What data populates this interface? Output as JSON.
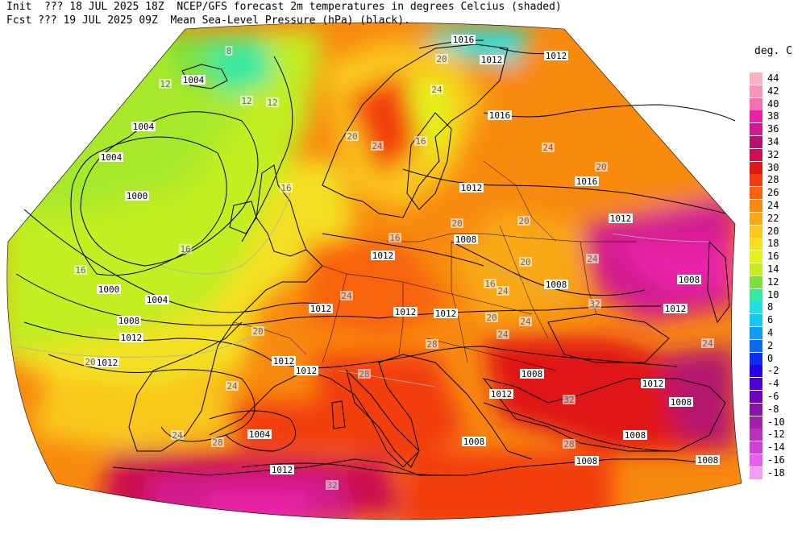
{
  "header": {
    "line1": "Init  ??? 18 JUL 2025 18Z  NCEP/GFS forecast 2m temperatures in degrees Celcius (shaded)",
    "line2": "Fcst ??? 19 JUL 2025 09Z  Mean Sea-Level Pressure (hPa) (black)."
  },
  "legend": {
    "title": "deg. C",
    "entries": [
      {
        "label": "44",
        "color": "#f9b3c3"
      },
      {
        "label": "42",
        "color": "#f893bd"
      },
      {
        "label": "40",
        "color": "#f66fb2"
      },
      {
        "label": "38",
        "color": "#e920a8"
      },
      {
        "label": "36",
        "color": "#d21a8e"
      },
      {
        "label": "34",
        "color": "#b5126e"
      },
      {
        "label": "32",
        "color": "#cc1050"
      },
      {
        "label": "30",
        "color": "#e01818"
      },
      {
        "label": "28",
        "color": "#f23c10"
      },
      {
        "label": "26",
        "color": "#f8640c"
      },
      {
        "label": "24",
        "color": "#f88a10"
      },
      {
        "label": "22",
        "color": "#f9a816"
      },
      {
        "label": "20",
        "color": "#f9c81a"
      },
      {
        "label": "18",
        "color": "#f4e020"
      },
      {
        "label": "16",
        "color": "#e6f01c"
      },
      {
        "label": "14",
        "color": "#c2ee22"
      },
      {
        "label": "12",
        "color": "#7ee03a"
      },
      {
        "label": "10",
        "color": "#38e8a0"
      },
      {
        "label": "8",
        "color": "#22e0e0"
      },
      {
        "label": "6",
        "color": "#18c8f4"
      },
      {
        "label": "4",
        "color": "#109cf2"
      },
      {
        "label": "2",
        "color": "#0a6aec"
      },
      {
        "label": "0",
        "color": "#0a2ef0"
      },
      {
        "label": "-2",
        "color": "#2800e6"
      },
      {
        "label": "-4",
        "color": "#5000d4"
      },
      {
        "label": "-6",
        "color": "#7000c0"
      },
      {
        "label": "-8",
        "color": "#8a10b0"
      },
      {
        "label": "-10",
        "color": "#a020a8"
      },
      {
        "label": "-12",
        "color": "#b830c0"
      },
      {
        "label": "-14",
        "color": "#d040d8"
      },
      {
        "label": "-16",
        "color": "#e660ee"
      },
      {
        "label": "-18",
        "color": "#f49cf4"
      }
    ]
  },
  "isobar_labels": [
    "1016",
    "1012",
    "1012",
    "1004",
    "1004",
    "1004",
    "1000",
    "1000",
    "1004",
    "1008",
    "1012",
    "1012",
    "1016",
    "1012",
    "1012",
    "1016",
    "1012",
    "1008",
    "1012",
    "1008",
    "1008",
    "1012",
    "1012",
    "1012",
    "1012",
    "1008",
    "1012",
    "1012",
    "1008",
    "1012",
    "1008",
    "1004",
    "1008",
    "1008",
    "1008",
    "1012"
  ],
  "temp_labels": [
    "8",
    "12",
    "12",
    "12",
    "20",
    "24",
    "24",
    "20",
    "16",
    "16",
    "16",
    "16",
    "16",
    "20",
    "24",
    "24",
    "24",
    "20",
    "24",
    "20",
    "20",
    "20",
    "16",
    "20",
    "20",
    "24",
    "24",
    "28",
    "28",
    "28",
    "28",
    "32",
    "24",
    "24",
    "32",
    "32",
    "24"
  ]
}
